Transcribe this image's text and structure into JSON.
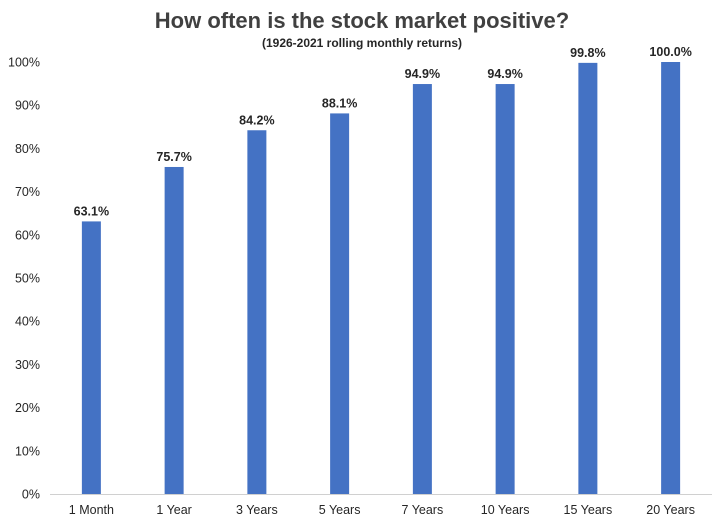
{
  "chart_data": {
    "type": "bar",
    "title": "How often is the stock market positive?",
    "subtitle": "(1926-2021 rolling monthly returns)",
    "categories": [
      "1 Month",
      "1 Year",
      "3 Years",
      "5 Years",
      "7 Years",
      "10 Years",
      "15 Years",
      "20 Years"
    ],
    "values": [
      63.1,
      75.7,
      84.2,
      88.1,
      94.9,
      94.9,
      99.8,
      100.0
    ],
    "data_labels": [
      "63.1%",
      "75.7%",
      "84.2%",
      "88.1%",
      "94.9%",
      "94.9%",
      "99.8%",
      "100.0%"
    ],
    "yticks": [
      "0%",
      "10%",
      "20%",
      "30%",
      "40%",
      "50%",
      "60%",
      "70%",
      "80%",
      "90%",
      "100%"
    ],
    "ylim": [
      0,
      100
    ],
    "xlabel": "",
    "ylabel": "",
    "grid": false,
    "legend": "none",
    "bar_color": "#4472C4"
  }
}
